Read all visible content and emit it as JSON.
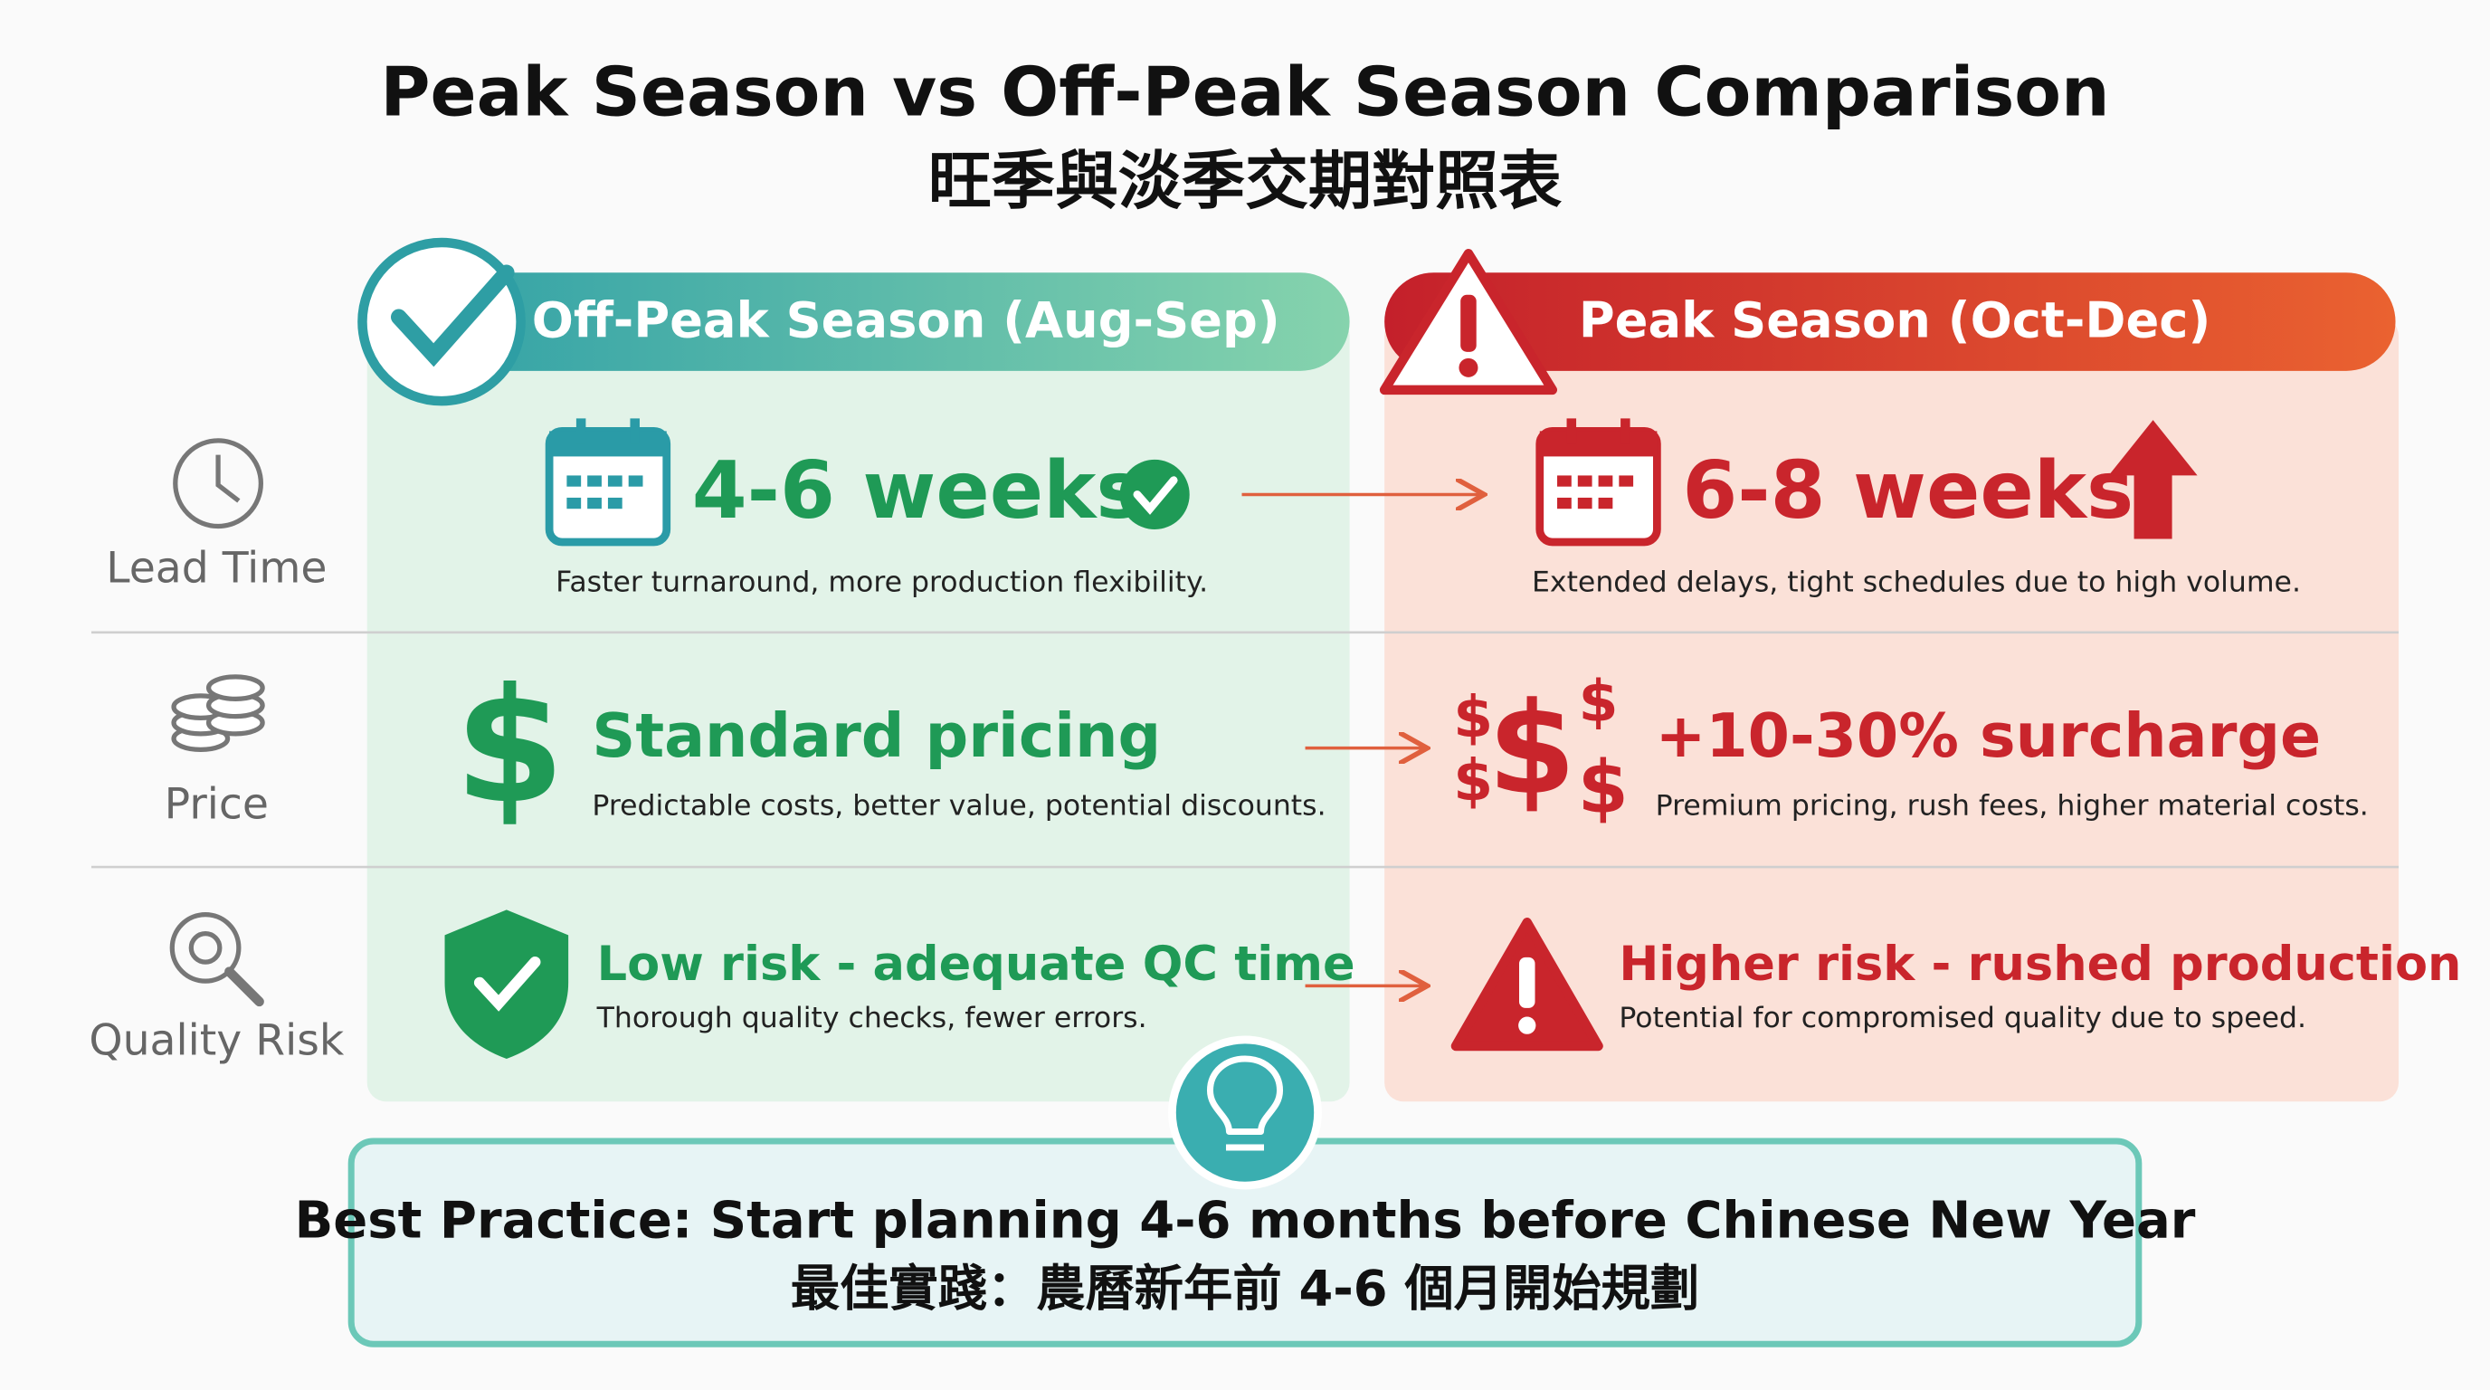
{
  "header": {
    "title": "Peak Season vs Off-Peak Season Comparison",
    "subtitle": "旺季與淡季交期對照表"
  },
  "columns": [
    "Off-Peak Season (Aug-Sep)",
    "Peak Season (Oct-Dec)"
  ],
  "rows": [
    {
      "label": "Lead Time",
      "off_peak": {
        "heading": "4-6 weeks",
        "description": "Faster turnaround, more production flexibility."
      },
      "peak": {
        "heading": "6-8 weeks",
        "description": "Extended delays, tight schedules due to high volume."
      }
    },
    {
      "label": "Price",
      "off_peak": {
        "heading": "Standard pricing",
        "description": "Predictable costs, better value, potential discounts."
      },
      "peak": {
        "heading": "+10-30% surcharge",
        "description": "Premium pricing, rush fees, higher material costs."
      }
    },
    {
      "label": "Quality Risk",
      "off_peak": {
        "heading": "Low risk - adequate QC time",
        "description": "Thorough quality checks, fewer errors."
      },
      "peak": {
        "heading": "Higher risk - rushed production",
        "description": "Potential for compromised quality due to speed."
      }
    }
  ],
  "best_practice": {
    "english": "Best Practice: Start planning 4-6 months before Chinese New Year",
    "chinese": "最佳實踐：農曆新年前 4-6 個月開始規劃"
  }
}
